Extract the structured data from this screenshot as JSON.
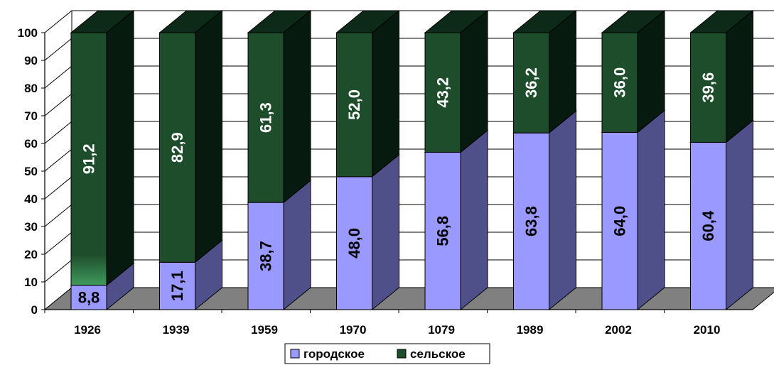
{
  "chart_data": {
    "type": "bar",
    "stacked": true,
    "three_d": true,
    "categories": [
      "1926",
      "1939",
      "1959",
      "1970",
      "1079",
      "1989",
      "2002",
      "2010"
    ],
    "series": [
      {
        "name": "городское",
        "values": [
          8.8,
          17.1,
          38.7,
          48.0,
          56.8,
          63.8,
          64.0,
          60.4
        ],
        "labels": [
          "8,8",
          "17,1",
          "38,7",
          "48,0",
          "56,8",
          "63,8",
          "64,0",
          "60,4"
        ],
        "color": "#9999ff",
        "side_color": "#4f4f8a",
        "top_color": "#5a5a9a"
      },
      {
        "name": "сельское",
        "values": [
          91.2,
          82.9,
          61.3,
          52.0,
          43.2,
          36.2,
          36.0,
          39.6
        ],
        "labels": [
          "91,2",
          "82,9",
          "61,3",
          "52,0",
          "43,2",
          "36,2",
          "36,0",
          "39,6"
        ],
        "color": "#1e4d2b",
        "side_color": "#061a10",
        "top_color": "#0c2a17"
      }
    ],
    "ylim": [
      0,
      100
    ],
    "yticks": [
      "0",
      "10",
      "20",
      "30",
      "40",
      "50",
      "60",
      "70",
      "80",
      "90",
      "100"
    ],
    "grid": true,
    "legend_position": "bottom",
    "floor_color": "#808080"
  }
}
